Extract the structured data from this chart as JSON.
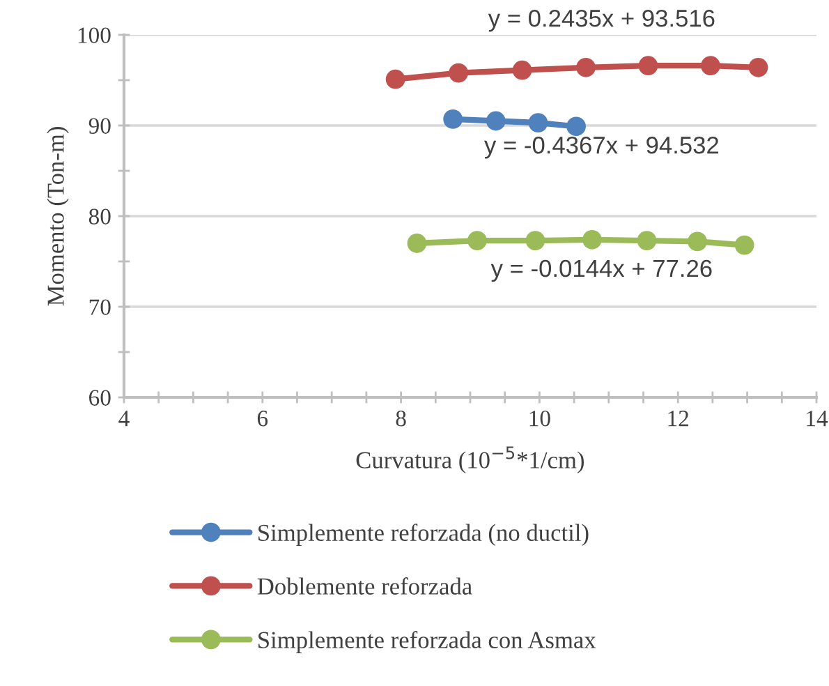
{
  "chart_data": {
    "type": "line",
    "xlabel": "Curvatura (10$^{−5}$*1/cm)",
    "ylabel": "Momento (Ton-m)",
    "series": [
      {
        "name": "Simplemente reforzada (no ductil)",
        "color": "#4f81bd",
        "x": [
          8.75,
          9.37,
          9.98,
          10.53
        ],
        "values": [
          90.7,
          90.5,
          90.3,
          89.9
        ]
      },
      {
        "name": "Doblemente reforzada",
        "color": "#c0504d",
        "x": [
          7.92,
          8.83,
          9.75,
          10.67,
          11.57,
          12.47,
          13.16
        ],
        "values": [
          95.1,
          95.8,
          96.1,
          96.4,
          96.6,
          96.6,
          96.4
        ]
      },
      {
        "name": "Simplemente reforzada con Asmax",
        "color": "#9bbb59",
        "x": [
          8.23,
          9.1,
          9.94,
          10.76,
          11.55,
          12.28,
          12.96
        ],
        "values": [
          77.0,
          77.3,
          77.3,
          77.4,
          77.3,
          77.2,
          76.8
        ]
      }
    ],
    "marker": "circle",
    "line_style": "solid",
    "xlim": [
      4,
      14
    ],
    "xticks": [
      4,
      {
        "value": 4.5,
        "label": null
      },
      {
        "value": 5,
        "label": null
      },
      {
        "value": 5.5,
        "label": null
      },
      6,
      {
        "value": 6.5,
        "label": null
      },
      {
        "value": 7,
        "label": null
      },
      {
        "value": 7.5,
        "label": null
      },
      8,
      {
        "value": 8.5,
        "label": null
      },
      {
        "value": 9,
        "label": null
      },
      {
        "value": 9.5,
        "label": null
      },
      10,
      {
        "value": 10.5,
        "label": null
      },
      {
        "value": 11,
        "label": null
      },
      {
        "value": 11.5,
        "label": null
      },
      12,
      {
        "value": 12.5,
        "label": null
      },
      {
        "value": 13,
        "label": null
      },
      {
        "value": 13.5,
        "label": null
      },
      14
    ],
    "ylim": [
      60,
      100
    ],
    "yticks": [
      60,
      {
        "value": 65,
        "label": null
      },
      70,
      {
        "value": 75,
        "label": null
      },
      80,
      {
        "value": 85,
        "label": null
      },
      90,
      {
        "value": 95,
        "label": null
      },
      100
    ],
    "grid": "y",
    "legend": "bottom",
    "annotations": [
      "y = 0.2435x + 93.516",
      "y = -0.4367x + 94.532",
      "y = -0.0144x + 77.26"
    ]
  }
}
